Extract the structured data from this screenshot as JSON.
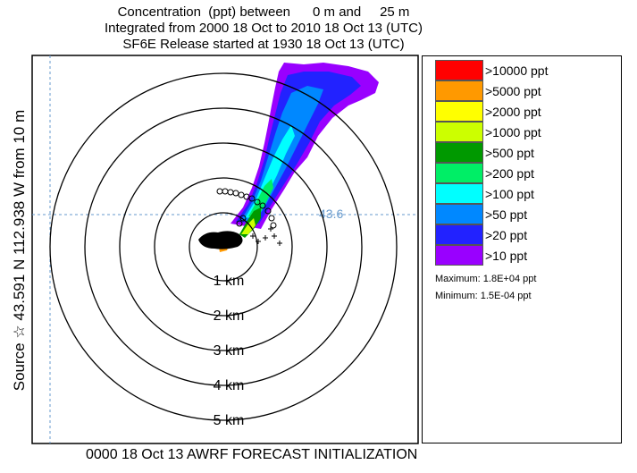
{
  "title": {
    "line1": "Concentration  (ppt) between      0 m and     25 m",
    "line2": "Integrated from 2000 18 Oct to 2010 18 Oct 13 (UTC)",
    "line3": "SF6E Release started at 1930 18 Oct 13 (UTC)"
  },
  "side_label": "Source ☆ 43.591  N 112.938  W  from  10 m",
  "footer": "0000 18 Oct 13 AWRF FORECAST INITIALIZATION",
  "map": {
    "lat_label": "43.6",
    "rings": [
      "1 km",
      "2 km",
      "3 km",
      "4 km",
      "5 km"
    ],
    "grid_color": "#6699cc"
  },
  "legend": {
    "items": [
      {
        "label": ">10000 ppt",
        "color": "#ff0000"
      },
      {
        "label": ">5000 ppt",
        "color": "#ff9900"
      },
      {
        "label": ">2000 ppt",
        "color": "#ffff00"
      },
      {
        "label": ">1000 ppt",
        "color": "#ccff00"
      },
      {
        "label": ">500 ppt",
        "color": "#009900"
      },
      {
        "label": ">200 ppt",
        "color": "#00ee66"
      },
      {
        "label": ">100 ppt",
        "color": "#00ffff"
      },
      {
        "label": ">50 ppt",
        "color": "#0088ff"
      },
      {
        "label": ">20 ppt",
        "color": "#2222ff"
      },
      {
        "label": ">10 ppt",
        "color": "#9900ff"
      }
    ],
    "maximum": "Maximum: 1.8E+04 ppt",
    "minimum": "Minimum: 1.5E-04 ppt"
  }
}
